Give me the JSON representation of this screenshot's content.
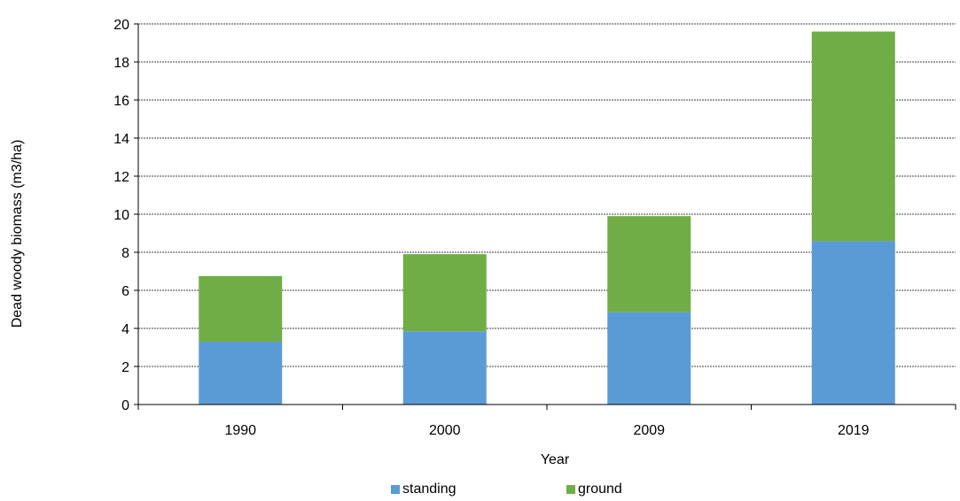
{
  "chart_data": {
    "type": "bar",
    "stacked": true,
    "categories": [
      "1990",
      "2000",
      "2009",
      "2019"
    ],
    "series": [
      {
        "name": "standing",
        "color": "#5b9bd5",
        "values": [
          3.3,
          3.85,
          4.85,
          8.6
        ]
      },
      {
        "name": "ground",
        "color": "#70ad47",
        "values": [
          3.45,
          4.05,
          5.05,
          11.0
        ]
      }
    ],
    "xlabel": "Year",
    "ylabel": "Dead woody biomass (m3/ha)",
    "ylim": [
      0,
      20
    ],
    "yticks": [
      "0",
      "2",
      "4",
      "6",
      "8",
      "10",
      "12",
      "14",
      "16",
      "18",
      "20"
    ],
    "grid": "horizontal dashed",
    "legend_position": "bottom"
  }
}
